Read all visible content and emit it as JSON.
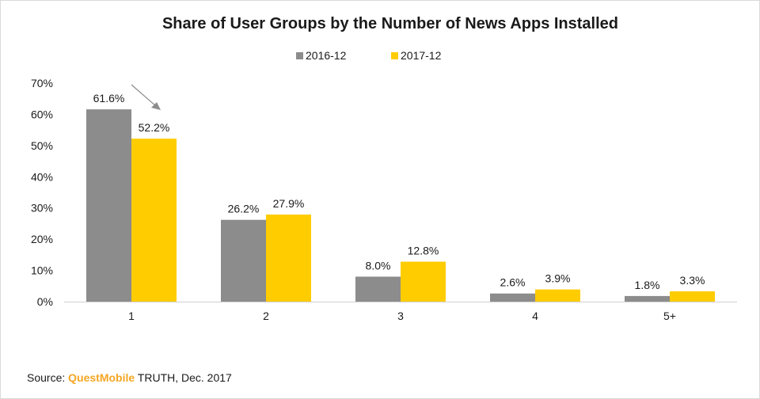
{
  "chart_data": {
    "type": "bar",
    "title": "Share of User Groups by the Number of News Apps Installed",
    "categories": [
      "1",
      "2",
      "3",
      "4",
      "5+"
    ],
    "series": [
      {
        "name": "2016-12",
        "color": "#8c8c8c",
        "values": [
          61.6,
          26.2,
          8.0,
          2.6,
          1.8
        ],
        "labels": [
          "61.6%",
          "26.2%",
          "8.0%",
          "2.6%",
          "1.8%"
        ]
      },
      {
        "name": "2017-12",
        "color": "#ffcc00",
        "values": [
          52.2,
          27.9,
          12.8,
          3.9,
          3.3
        ],
        "labels": [
          "52.2%",
          "27.9%",
          "12.8%",
          "3.9%",
          "3.3%"
        ]
      }
    ],
    "y_ticks": [
      "0%",
      "10%",
      "20%",
      "30%",
      "40%",
      "50%",
      "60%",
      "70%"
    ],
    "ylim": [
      0,
      70
    ],
    "xlabel": "",
    "ylabel": "",
    "grid": false,
    "legend": "top-center",
    "annotation": "arrow pointing down from 2016-12 to 2017-12 bar in category 1"
  },
  "source": {
    "prefix": "Source: ",
    "brand": "QuestMobile",
    "brand_color": "#f5a623",
    "suffix": " TRUTH, Dec. 2017"
  }
}
